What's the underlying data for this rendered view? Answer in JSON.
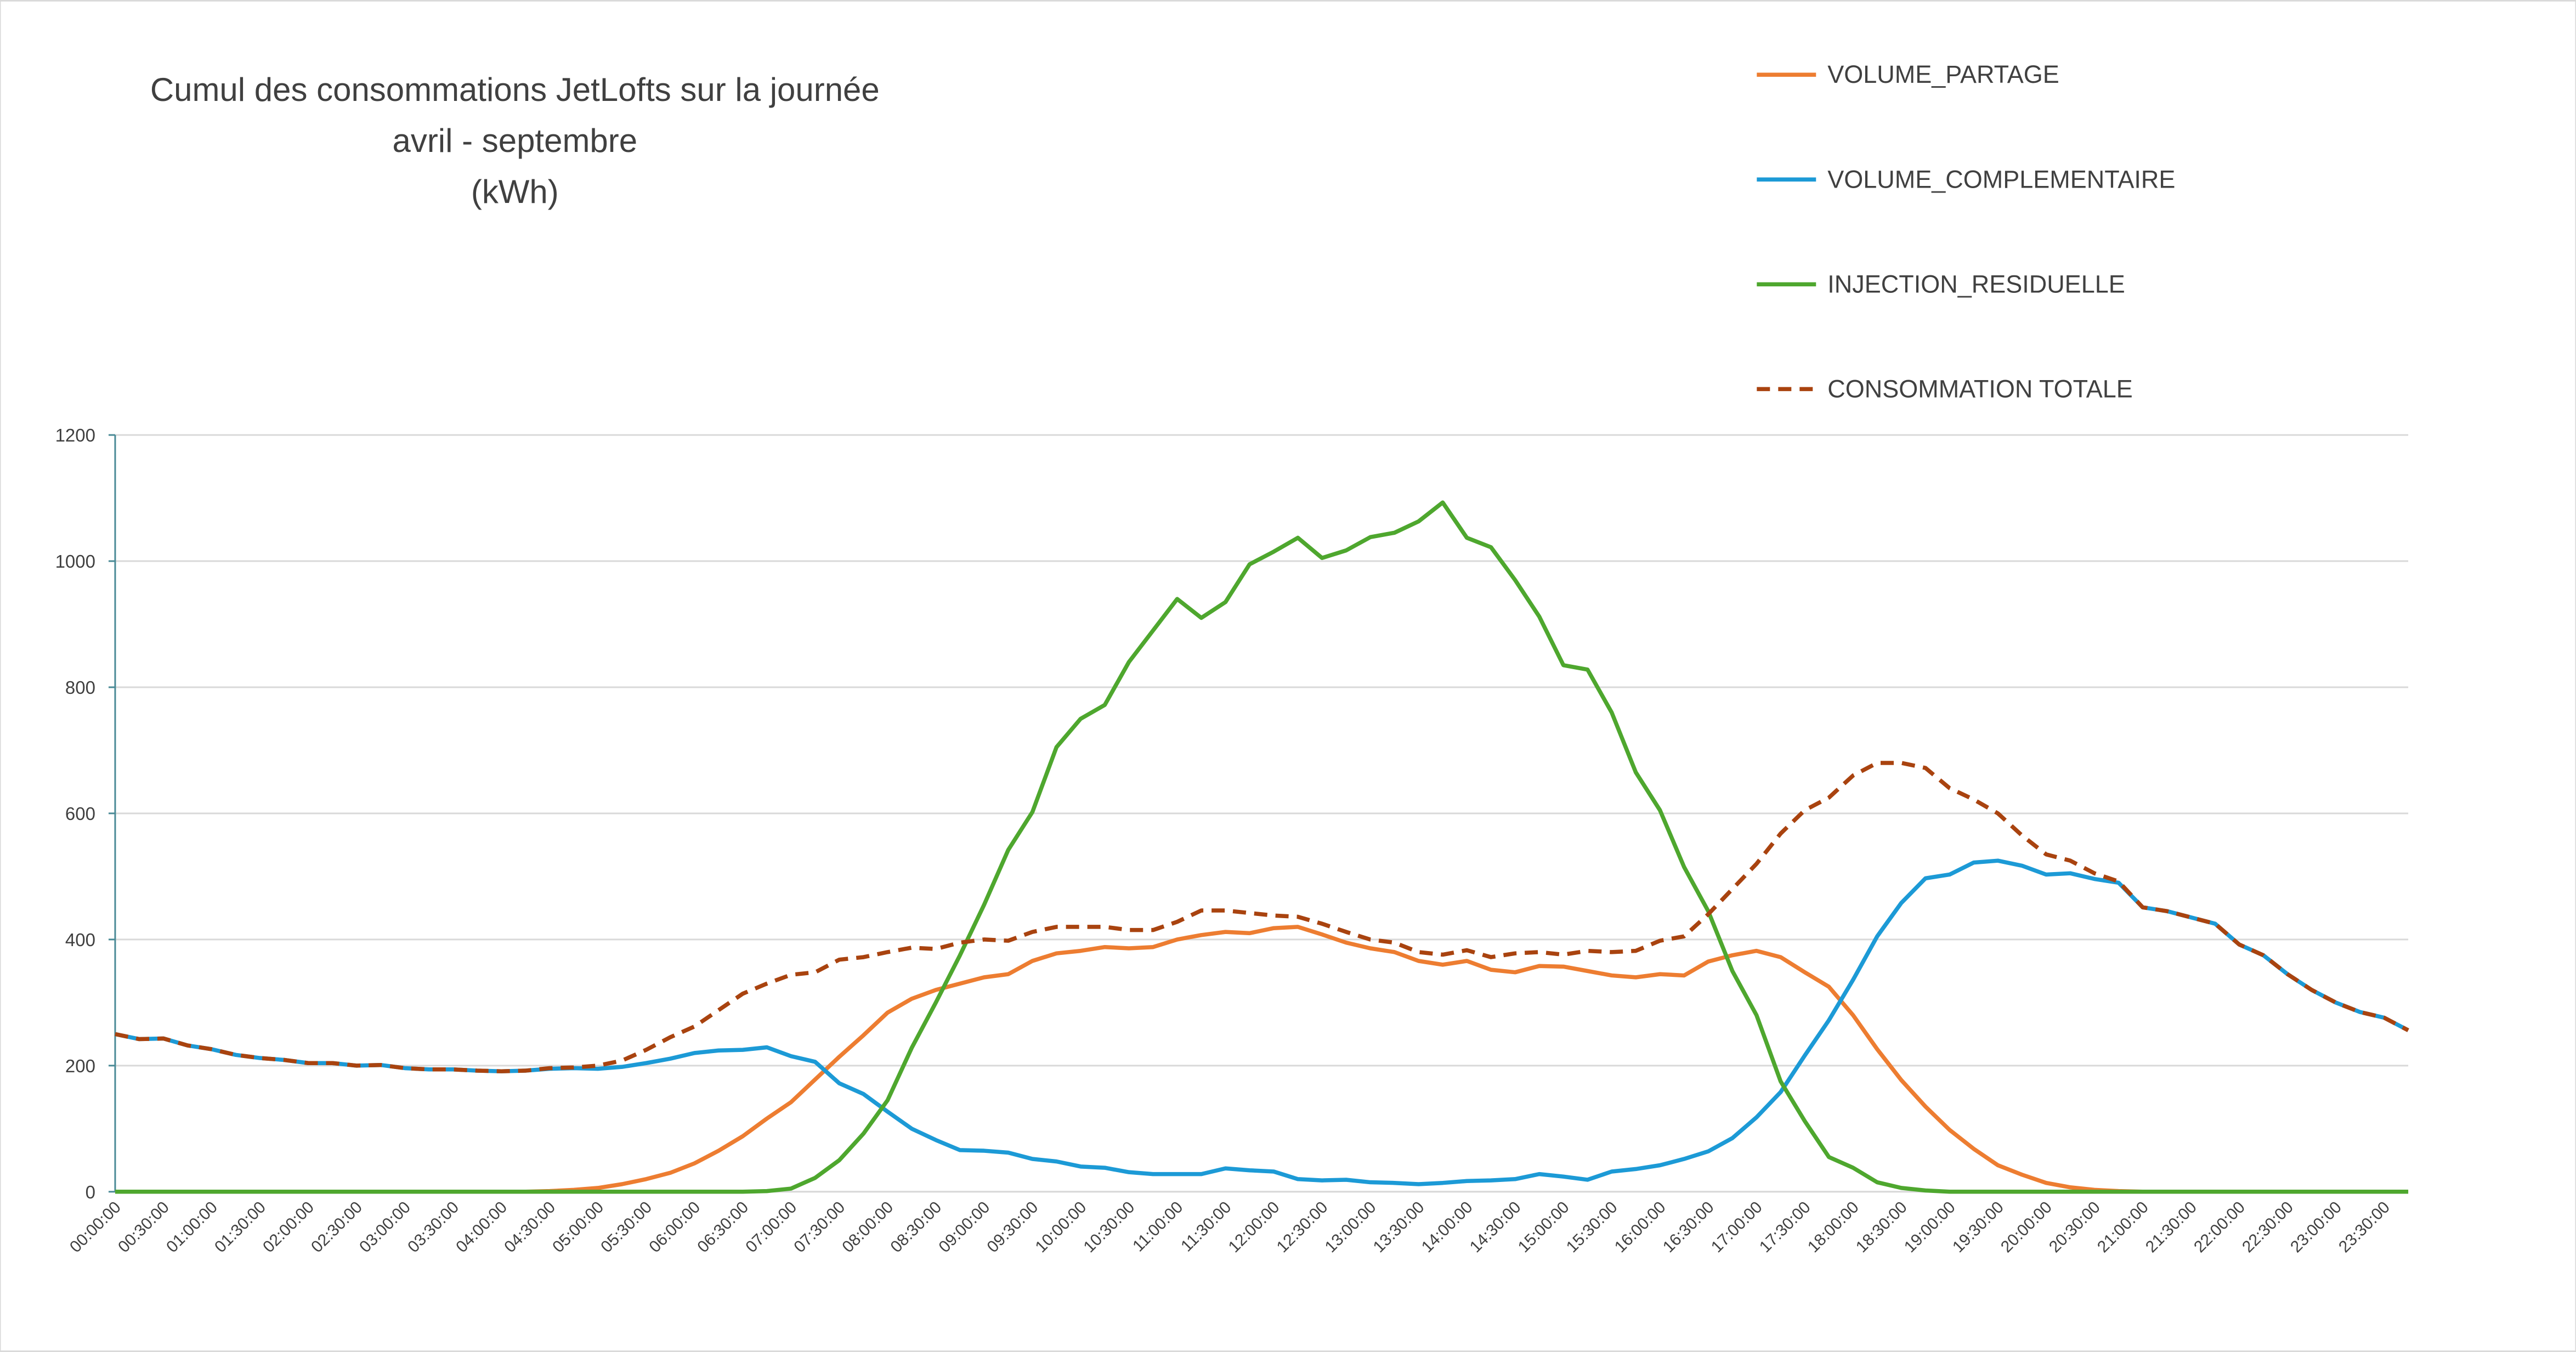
{
  "chart_data": {
    "type": "line",
    "title": [
      "Cumul des consommations JetLofts sur la journée",
      "avril - septembre",
      "(kWh)"
    ],
    "categories": [
      "00:00:00",
      null,
      "00:30:00",
      null,
      "01:00:00",
      null,
      "01:30:00",
      null,
      "02:00:00",
      null,
      "02:30:00",
      null,
      "03:00:00",
      null,
      "03:30:00",
      null,
      "04:00:00",
      null,
      "04:30:00",
      null,
      "05:00:00",
      null,
      "05:30:00",
      null,
      "06:00:00",
      null,
      "06:30:00",
      null,
      "07:00:00",
      null,
      "07:30:00",
      null,
      "08:00:00",
      null,
      "08:30:00",
      null,
      "09:00:00",
      null,
      "09:30:00",
      null,
      "10:00:00",
      null,
      "10:30:00",
      null,
      "11:00:00",
      null,
      "11:30:00",
      null,
      "12:00:00",
      null,
      "12:30:00",
      null,
      "13:00:00",
      null,
      "13:30:00",
      null,
      "14:00:00",
      null,
      "14:30:00",
      null,
      "15:00:00",
      null,
      "15:30:00",
      null,
      "16:00:00",
      null,
      "16:30:00",
      null,
      "17:00:00",
      null,
      "17:30:00",
      null,
      "18:00:00",
      null,
      "18:30:00",
      null,
      "19:00:00",
      null,
      "19:30:00",
      null,
      "20:00:00",
      null,
      "20:30:00",
      null,
      "21:00:00",
      null,
      "21:30:00",
      null,
      "22:00:00",
      null,
      "22:30:00",
      null,
      "23:00:00",
      null,
      "23:30:00",
      null
    ],
    "series": [
      {
        "name": "VOLUME_PARTAGE",
        "color": "#ed7d31",
        "dashed": false,
        "values": [
          0,
          0,
          0,
          0,
          0,
          0,
          0,
          0,
          0,
          0,
          0,
          0,
          0,
          0,
          0,
          0,
          0,
          0,
          1,
          3,
          6,
          12,
          20,
          30,
          45,
          65,
          88,
          116,
          142,
          178,
          214,
          248,
          284,
          306,
          320,
          330,
          340,
          345,
          366,
          378,
          382,
          388,
          386,
          388,
          400,
          407,
          412,
          410,
          418,
          420,
          408,
          395,
          386,
          380,
          366,
          360,
          366,
          352,
          348,
          358,
          357,
          350,
          343,
          340,
          345,
          343,
          365,
          375,
          382,
          372,
          348,
          325,
          280,
          226,
          177,
          135,
          98,
          68,
          42,
          27,
          14,
          7,
          3,
          1,
          0,
          0,
          0,
          0,
          0,
          0,
          0,
          0,
          0,
          0,
          0,
          0
        ]
      },
      {
        "name": "VOLUME_COMPLEMENTAIRE",
        "color": "#1c9ad6",
        "dashed": false,
        "values": [
          250,
          242,
          243,
          232,
          226,
          217,
          212,
          209,
          204,
          204,
          200,
          201,
          196,
          194,
          194,
          192,
          191,
          192,
          195,
          196,
          195,
          198,
          204,
          211,
          220,
          224,
          225,
          229,
          215,
          206,
          172,
          155,
          127,
          100,
          82,
          66,
          65,
          62,
          52,
          48,
          40,
          38,
          31,
          28,
          28,
          28,
          37,
          34,
          32,
          20,
          18,
          19,
          15,
          14,
          12,
          14,
          17,
          18,
          20,
          28,
          24,
          19,
          32,
          36,
          42,
          52,
          64,
          85,
          118,
          158,
          216,
          272,
          336,
          405,
          458,
          497,
          503,
          522,
          525,
          517,
          503,
          505,
          496,
          490,
          451,
          445,
          435,
          425,
          392,
          375,
          345,
          320,
          300,
          285,
          276,
          256
        ]
      },
      {
        "name": "INJECTION_RESIDUELLE",
        "color": "#4ea72e",
        "dashed": false,
        "values": [
          0,
          0,
          0,
          0,
          0,
          0,
          0,
          0,
          0,
          0,
          0,
          0,
          0,
          0,
          0,
          0,
          0,
          0,
          0,
          0,
          0,
          0,
          0,
          0,
          0,
          0,
          0,
          1,
          5,
          22,
          50,
          92,
          145,
          228,
          300,
          375,
          455,
          542,
          602,
          705,
          750,
          772,
          840,
          890,
          940,
          910,
          935,
          995,
          1015,
          1037,
          1005,
          1017,
          1038,
          1045,
          1063,
          1093,
          1037,
          1022,
          970,
          912,
          835,
          828,
          760,
          665,
          605,
          515,
          445,
          350,
          280,
          175,
          112,
          55,
          38,
          15,
          6,
          2,
          0,
          0,
          0,
          0,
          0,
          0,
          0,
          0,
          0,
          0,
          0,
          0,
          0,
          0,
          0,
          0,
          0,
          0,
          0,
          0
        ]
      },
      {
        "name": "CONSOMMATION TOTALE",
        "color": "#a9430f",
        "dashed": true,
        "values": [
          250,
          242,
          243,
          232,
          226,
          217,
          212,
          209,
          204,
          204,
          200,
          201,
          196,
          194,
          194,
          192,
          191,
          192,
          196,
          197,
          200,
          208,
          225,
          245,
          262,
          288,
          314,
          330,
          344,
          348,
          368,
          372,
          380,
          387,
          385,
          395,
          400,
          398,
          412,
          420,
          420,
          420,
          415,
          415,
          428,
          446,
          446,
          442,
          438,
          436,
          425,
          412,
          400,
          395,
          380,
          376,
          383,
          372,
          378,
          380,
          376,
          382,
          380,
          382,
          398,
          405,
          440,
          480,
          520,
          568,
          605,
          625,
          660,
          680,
          680,
          672,
          640,
          622,
          600,
          565,
          535,
          525,
          505,
          492,
          451,
          445,
          435,
          425,
          392,
          375,
          345,
          320,
          300,
          285,
          276,
          256
        ]
      }
    ],
    "ylim": [
      0,
      1200
    ],
    "yticks": [
      0,
      200,
      400,
      600,
      800,
      1000,
      1200
    ],
    "grid": true,
    "legend": "top-right"
  }
}
